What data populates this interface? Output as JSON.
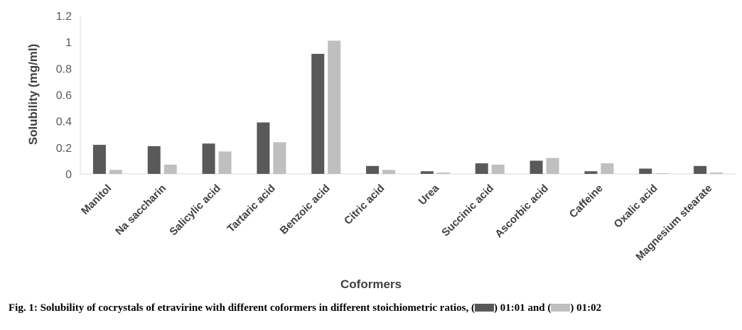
{
  "chart_data": {
    "type": "bar",
    "categories": [
      "Manitol",
      "Na saccharin",
      "Salicylic acid",
      "Tartaric acid",
      "Benzoic acid",
      "Citric acid",
      "Urea",
      "Succinic acid",
      "Ascorbic acid",
      "Caffeine",
      "Oxalic acid",
      "Magnesium stearate"
    ],
    "series": [
      {
        "name": "01:01",
        "color": "#595959",
        "values": [
          0.22,
          0.21,
          0.23,
          0.39,
          0.91,
          0.06,
          0.02,
          0.08,
          0.1,
          0.02,
          0.04,
          0.06
        ]
      },
      {
        "name": "01:02",
        "color": "#bfbfbf",
        "values": [
          0.03,
          0.07,
          0.17,
          0.24,
          1.01,
          0.03,
          0.01,
          0.07,
          0.12,
          0.08,
          0.005,
          0.01
        ]
      }
    ],
    "xlabel": "Coformers",
    "ylabel": "Solubility (mg/ml)",
    "ylim": [
      0,
      1.2
    ],
    "yticks": [
      "0",
      "0.2",
      "0.4",
      "0.6",
      "0.8",
      "1",
      "1.2"
    ],
    "grid": false,
    "legend": "none"
  },
  "caption": {
    "prefix": "Fig. 1: Solubility of cocrystals of etravirine with different coformers in different stoichiometric ratios, (",
    "mid1": ") 01:01 and (",
    "mid2": ") 01:02"
  }
}
